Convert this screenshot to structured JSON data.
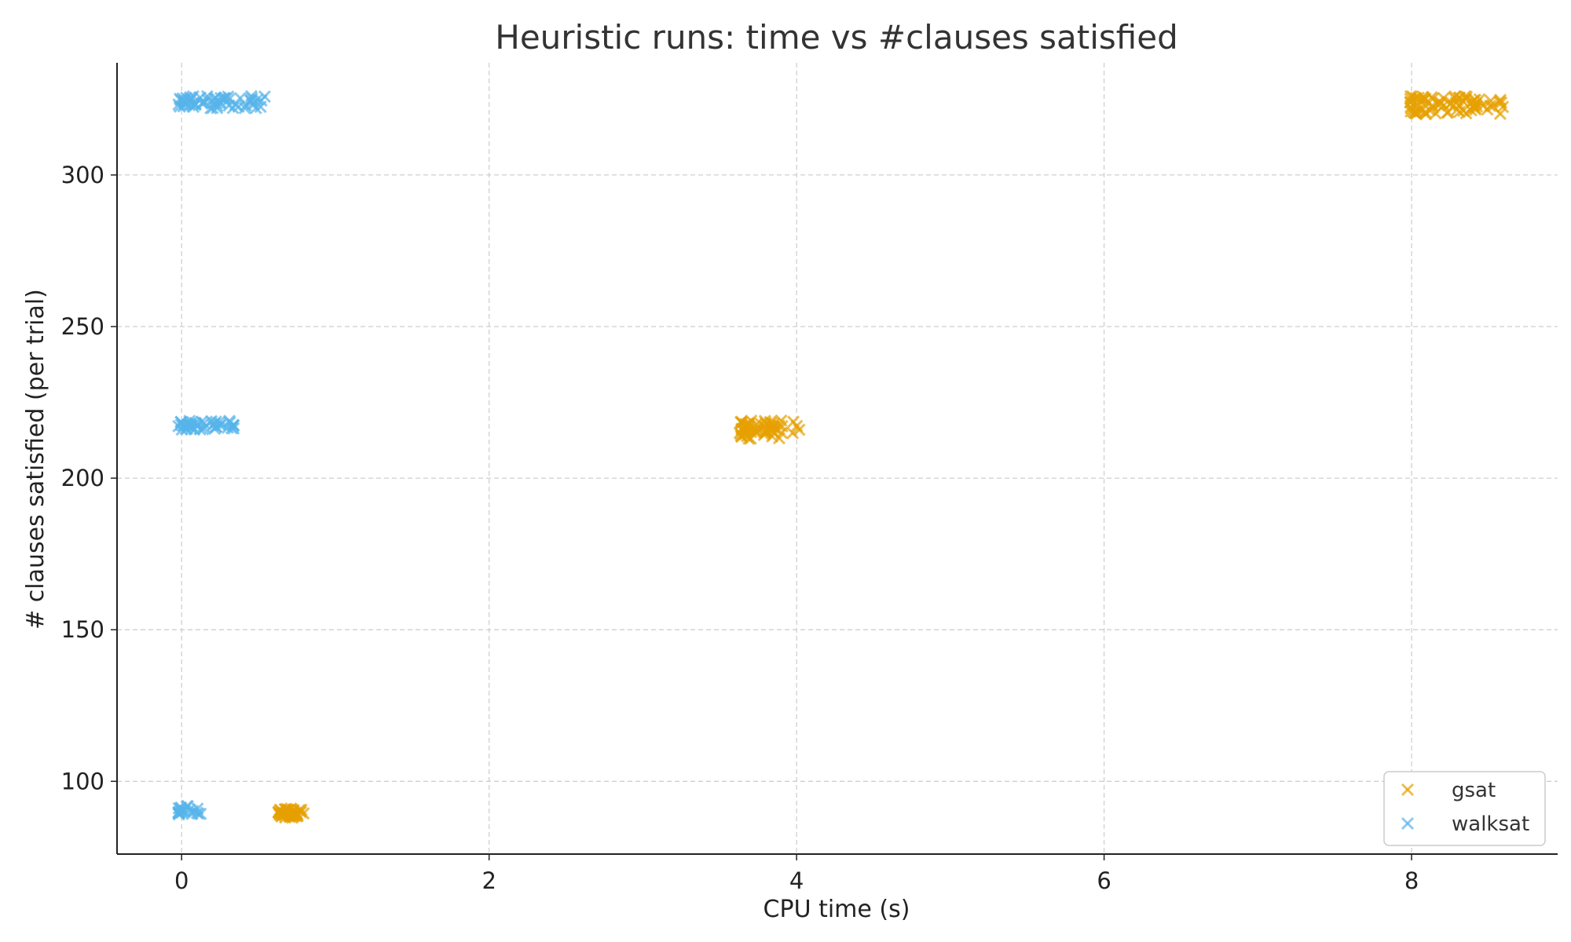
{
  "chart_data": {
    "type": "scatter",
    "title": "Heuristic runs: time vs #clauses satisfied",
    "xlabel": "CPU time (s)",
    "ylabel": "# clauses satisfied (per trial)",
    "xlim": [
      -0.42,
      8.95
    ],
    "ylim": [
      76,
      337
    ],
    "xticks": [
      0,
      2,
      4,
      6,
      8
    ],
    "yticks": [
      100,
      150,
      200,
      250,
      300
    ],
    "grid": true,
    "marker": "x",
    "legend_position": "bottom-right",
    "series": [
      {
        "name": "gsat",
        "color": "#E69F00",
        "clusters": [
          {
            "x_range": [
              0.63,
              0.8
            ],
            "y_range": [
              88,
              91
            ],
            "count": 45
          },
          {
            "x_range": [
              3.63,
              4.02
            ],
            "y_range": [
              213,
              219
            ],
            "count": 60
          },
          {
            "x_range": [
              7.99,
              8.6
            ],
            "y_range": [
              320,
              326
            ],
            "count": 75
          }
        ]
      },
      {
        "name": "walksat",
        "color": "#56B4E9",
        "clusters": [
          {
            "x_range": [
              -0.02,
              0.15
            ],
            "y_range": [
              89,
              92
            ],
            "count": 22
          },
          {
            "x_range": [
              -0.02,
              0.36
            ],
            "y_range": [
              216,
              219
            ],
            "count": 45
          },
          {
            "x_range": [
              -0.02,
              0.55
            ],
            "y_range": [
              322,
              326
            ],
            "count": 60
          }
        ]
      }
    ]
  }
}
